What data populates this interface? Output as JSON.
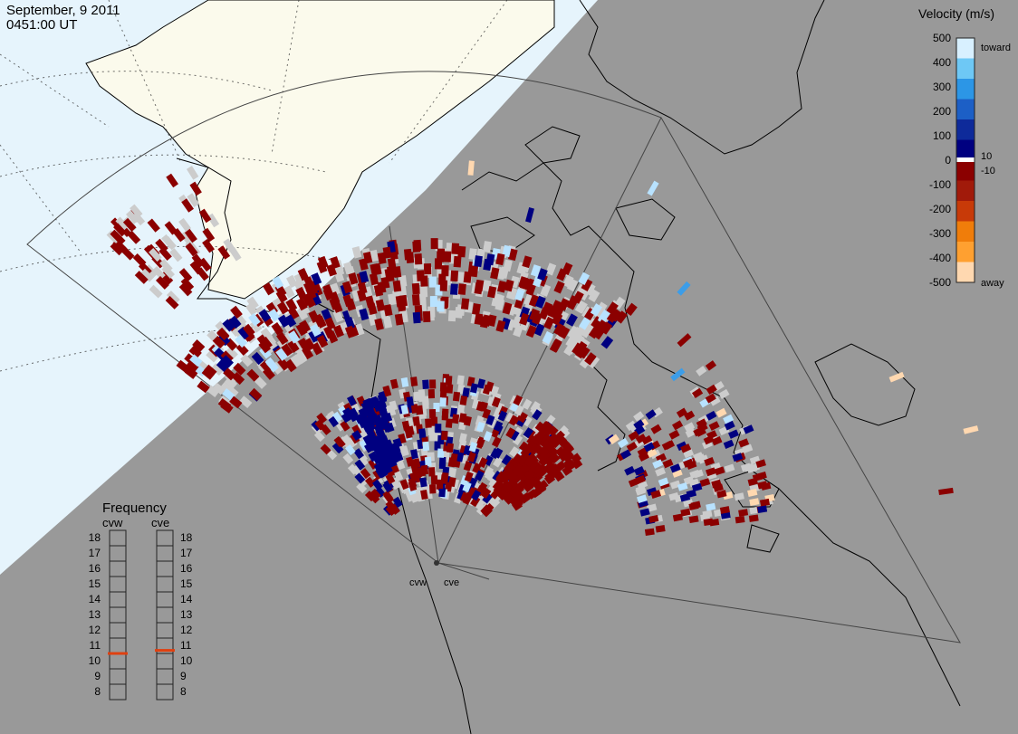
{
  "header": {
    "date": "September, 9 2011",
    "time": "0451:00 UT"
  },
  "velocity_legend": {
    "title": "Velocity (m/s)",
    "ticks": [
      "500",
      "400",
      "300",
      "200",
      "100",
      "0",
      "-100",
      "-200",
      "-300",
      "-400",
      "-500"
    ],
    "label_toward": "toward",
    "label_away": "away",
    "label_pos_10": "10",
    "label_neg_10": "-10",
    "colors": [
      "#d8f0ff",
      "#6ec8f5",
      "#2c96e6",
      "#1c5fc6",
      "#0e2a9a",
      "#000080",
      "#8b0000",
      "#a11a0a",
      "#c83a08",
      "#f07d0a",
      "#ffa030",
      "#ffd8b0"
    ]
  },
  "frequency_legend": {
    "title": "Frequency",
    "radars": [
      {
        "name": "cvw",
        "value": 10.5
      },
      {
        "name": "cve",
        "value": 10.7
      }
    ],
    "scale": [
      "18",
      "17",
      "16",
      "15",
      "14",
      "13",
      "12",
      "11",
      "10",
      "9",
      "8"
    ],
    "marker_color": "#e04010"
  },
  "radars": [
    {
      "name": "cvw"
    },
    {
      "name": "cve"
    }
  ],
  "colors": {
    "night": "#999999",
    "day_ocean": "#e6f4fc",
    "day_land": "#fbfaec",
    "ground_scatter": "#cccccc",
    "coast": "#000000"
  }
}
